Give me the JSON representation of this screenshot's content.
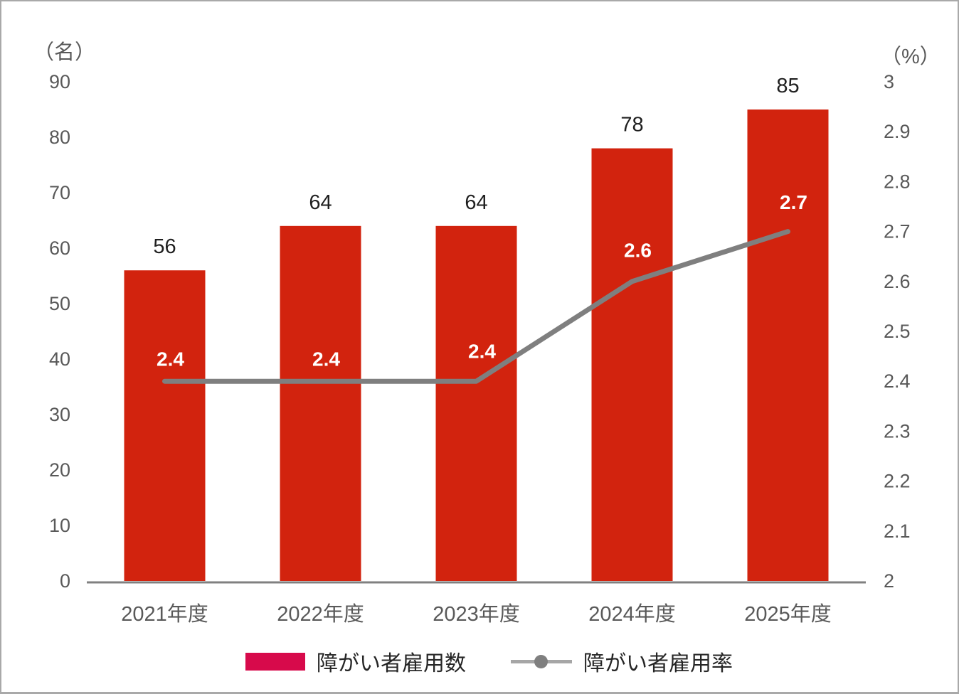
{
  "chart_data": {
    "type": "bar+line combo",
    "categories": [
      "2021年度",
      "2022年度",
      "2023年度",
      "2024年度",
      "2025年度"
    ],
    "series": [
      {
        "name": "障がい者雇用数",
        "type": "bar",
        "axis": "left",
        "values": [
          56,
          64,
          64,
          78,
          85
        ],
        "data_labels": [
          "56",
          "64",
          "64",
          "78",
          "85"
        ]
      },
      {
        "name": "障がい者雇用率",
        "type": "line",
        "axis": "right",
        "values": [
          2.4,
          2.4,
          2.4,
          2.6,
          2.7
        ],
        "data_labels": [
          "2.4",
          "2.4",
          "2.4",
          "2.6",
          "2.7"
        ]
      }
    ],
    "left_axis": {
      "title": "（名）",
      "min": 0,
      "max": 90,
      "tick_step": 10,
      "tick_labels": [
        "90",
        "80",
        "70",
        "60",
        "50",
        "40",
        "30",
        "20",
        "10",
        "0"
      ]
    },
    "right_axis": {
      "title": "（%）",
      "min": 2,
      "max": 3,
      "tick_step": 0.1,
      "tick_labels": [
        "3",
        "2.9",
        "2.8",
        "2.7",
        "2.6",
        "2.5",
        "2.4",
        "2.3",
        "2.2",
        "2.1",
        "2"
      ]
    },
    "legend": {
      "position": "bottom",
      "items": [
        {
          "label": "障がい者雇用数",
          "marker": "bar-swatch"
        },
        {
          "label": "障がい者雇用率",
          "marker": "line-with-dot"
        }
      ]
    },
    "grid": false,
    "title": ""
  },
  "colors": {
    "bar_fill": "#d2230e",
    "legend_bar_swatch": "#d70a4b",
    "line_stroke": "#7f7f7f",
    "legend_line": "#a6a6a6",
    "legend_marker": "#7f7f7f",
    "axis_line": "#808080",
    "tick_text": "#595959",
    "bar_label_text": "#1f1f1f",
    "line_label_text": "#ffffff",
    "page_border": "#a9a9a9"
  }
}
